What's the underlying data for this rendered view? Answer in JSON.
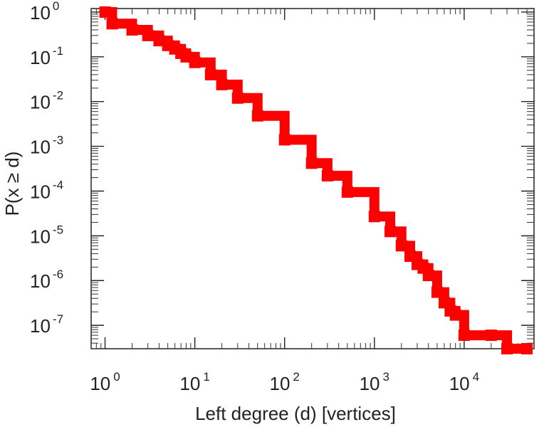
{
  "chart_data": {
    "type": "line",
    "title": "",
    "xlabel": "Left degree (d) [vertices]",
    "ylabel": "P(x ≥ d)",
    "x_scale": "log",
    "y_scale": "log",
    "xlim": [
      0.7,
      60000
    ],
    "ylim": [
      3e-08,
      1.2
    ],
    "grid": false,
    "legend": "none",
    "x_ticks": [
      {
        "value": 1,
        "base": "10",
        "exp": "0"
      },
      {
        "value": 10,
        "base": "10",
        "exp": "1"
      },
      {
        "value": 100,
        "base": "10",
        "exp": "2"
      },
      {
        "value": 1000,
        "base": "10",
        "exp": "3"
      },
      {
        "value": 10000,
        "base": "10",
        "exp": "4"
      }
    ],
    "y_ticks": [
      {
        "value": 1,
        "base": "10",
        "exp": "0"
      },
      {
        "value": 0.1,
        "base": "10",
        "exp": "-1"
      },
      {
        "value": 0.01,
        "base": "10",
        "exp": "-2"
      },
      {
        "value": 0.001,
        "base": "10",
        "exp": "-3"
      },
      {
        "value": 0.0001,
        "base": "10",
        "exp": "-4"
      },
      {
        "value": 1e-05,
        "base": "10",
        "exp": "-5"
      },
      {
        "value": 1e-06,
        "base": "10",
        "exp": "-6"
      },
      {
        "value": 1e-07,
        "base": "10",
        "exp": "-7"
      }
    ],
    "series": [
      {
        "color": "#ff0000",
        "marker": "square",
        "step": true,
        "x": [
          1,
          1.2,
          2,
          3,
          4,
          5,
          6,
          7,
          8,
          10,
          15,
          20,
          30,
          50,
          100,
          200,
          300,
          500,
          1000,
          1500,
          2000,
          2500,
          3000,
          3500,
          4000,
          5000,
          6000,
          7000,
          8000,
          10000,
          20000,
          30000,
          50000
        ],
        "y": [
          1,
          0.55,
          0.4,
          0.3,
          0.23,
          0.18,
          0.15,
          0.12,
          0.1,
          0.075,
          0.04,
          0.024,
          0.012,
          0.0048,
          0.0014,
          0.00042,
          0.00022,
          9.5e-05,
          2.7e-05,
          1.25e-05,
          6e-06,
          3.5e-06,
          2.3e-06,
          1.9e-06,
          1.3e-06,
          5.5e-07,
          3.2e-07,
          2.1e-07,
          1.7e-07,
          6e-08,
          6e-08,
          3e-08,
          3e-08
        ]
      }
    ]
  }
}
